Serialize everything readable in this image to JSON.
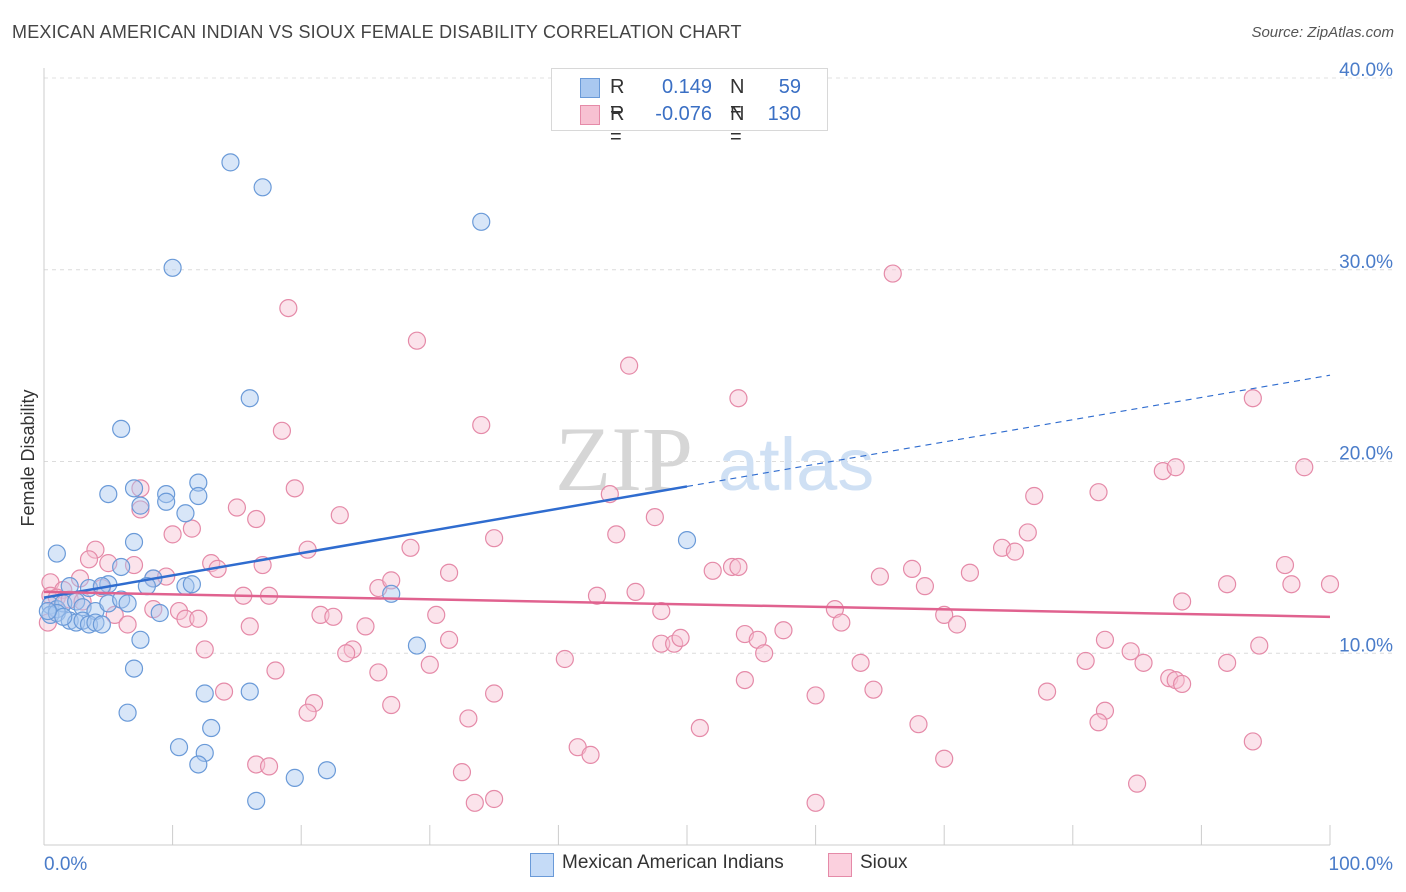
{
  "header": {
    "title": "MEXICAN AMERICAN INDIAN VS SIOUX FEMALE DISABILITY CORRELATION CHART",
    "source": "Source: ZipAtlas.com"
  },
  "watermark": {
    "zip": "ZIP",
    "atlas": "atlas"
  },
  "legend": {
    "rows": [
      {
        "r_label": "R =",
        "r_value": "0.149",
        "n_label": "N =",
        "n_value": "59",
        "color": "#a9c8f0",
        "border": "#6a9ad8"
      },
      {
        "r_label": "R =",
        "r_value": "-0.076",
        "n_label": "N =",
        "n_value": "130",
        "color": "#f7c1d2",
        "border": "#e58aa8"
      }
    ]
  },
  "bottom_legend": [
    {
      "label": "Mexican American Indians",
      "color": "#c5dbf7",
      "border": "#6a9ad8"
    },
    {
      "label": "Sioux",
      "color": "#fbd0de",
      "border": "#e58aa8"
    }
  ],
  "chart_data": {
    "type": "scatter",
    "ylabel": "Female Disability",
    "xlim": [
      0,
      100
    ],
    "ylim": [
      0,
      40
    ],
    "x_tick_labels": {
      "left": "0.0%",
      "right": "100.0%"
    },
    "y_ticks": [
      {
        "value": 10,
        "label": "10.0%"
      },
      {
        "value": 20,
        "label": "20.0%"
      },
      {
        "value": 30,
        "label": "30.0%"
      },
      {
        "value": 40,
        "label": "40.0%"
      }
    ],
    "series": [
      {
        "name": "Mexican American Indians",
        "color": "#6a9ad8",
        "fill": "#a9c8f0",
        "trend": {
          "x0": 0,
          "y0": 12.9,
          "x1": 50,
          "y1": 18.7,
          "dash_to_x": 100,
          "dash_to_y": 24.5,
          "color": "#2f6ccf"
        },
        "points": [
          [
            14.5,
            35.6
          ],
          [
            17,
            34.3
          ],
          [
            34,
            32.5
          ],
          [
            10,
            30.1
          ],
          [
            16,
            23.3
          ],
          [
            6,
            21.7
          ],
          [
            5,
            18.3
          ],
          [
            7,
            18.6
          ],
          [
            9.5,
            18.3
          ],
          [
            12,
            18.9
          ],
          [
            12,
            18.2
          ],
          [
            9.5,
            17.9
          ],
          [
            7.5,
            17.7
          ],
          [
            11,
            17.3
          ],
          [
            7,
            15.8
          ],
          [
            50,
            15.9
          ],
          [
            1,
            15.2
          ],
          [
            6,
            14.5
          ],
          [
            8.5,
            13.9
          ],
          [
            5,
            13.6
          ],
          [
            2,
            13.5
          ],
          [
            3.5,
            13.4
          ],
          [
            4.5,
            13.5
          ],
          [
            8,
            13.5
          ],
          [
            11,
            13.5
          ],
          [
            11.5,
            13.6
          ],
          [
            27,
            13.1
          ],
          [
            0.5,
            12.5
          ],
          [
            1,
            12.3
          ],
          [
            1.5,
            12.6
          ],
          [
            2.5,
            12.7
          ],
          [
            3,
            12.4
          ],
          [
            4,
            12.2
          ],
          [
            5,
            12.6
          ],
          [
            6,
            12.8
          ],
          [
            6.5,
            12.6
          ],
          [
            9,
            12.1
          ],
          [
            0.5,
            12.0
          ],
          [
            1,
            12.1
          ],
          [
            2,
            11.7
          ],
          [
            2.5,
            11.6
          ],
          [
            3,
            11.7
          ],
          [
            3.5,
            11.5
          ],
          [
            4,
            11.6
          ],
          [
            4.5,
            11.5
          ],
          [
            1.5,
            11.9
          ],
          [
            0.3,
            12.2
          ],
          [
            7.5,
            10.7
          ],
          [
            29,
            10.4
          ],
          [
            7,
            9.2
          ],
          [
            12.5,
            7.9
          ],
          [
            16,
            8.0
          ],
          [
            6.5,
            6.9
          ],
          [
            13,
            6.1
          ],
          [
            10.5,
            5.1
          ],
          [
            12.5,
            4.8
          ],
          [
            12,
            4.2
          ],
          [
            22,
            3.9
          ],
          [
            19.5,
            3.5
          ],
          [
            16.5,
            2.3
          ]
        ]
      },
      {
        "name": "Sioux",
        "color": "#e58aa8",
        "fill": "#f7c1d2",
        "trend": {
          "x0": 0,
          "y0": 13.2,
          "x1": 100,
          "y1": 11.9,
          "color": "#e0628f"
        },
        "points": [
          [
            19,
            28.0
          ],
          [
            29,
            26.3
          ],
          [
            45.5,
            25.0
          ],
          [
            66,
            29.8
          ],
          [
            54,
            23.3
          ],
          [
            94,
            23.3
          ],
          [
            18.5,
            21.6
          ],
          [
            34,
            21.9
          ],
          [
            87,
            19.5
          ],
          [
            88,
            19.7
          ],
          [
            98,
            19.7
          ],
          [
            7.5,
            18.6
          ],
          [
            19.5,
            18.6
          ],
          [
            44,
            18.3
          ],
          [
            77,
            18.2
          ],
          [
            82,
            18.4
          ],
          [
            15,
            17.6
          ],
          [
            7.5,
            17.5
          ],
          [
            16.5,
            17.0
          ],
          [
            23,
            17.2
          ],
          [
            47.5,
            17.1
          ],
          [
            11.5,
            16.5
          ],
          [
            10,
            16.2
          ],
          [
            35,
            16.0
          ],
          [
            44.5,
            16.2
          ],
          [
            76.5,
            16.3
          ],
          [
            4,
            15.4
          ],
          [
            20.5,
            15.4
          ],
          [
            28.5,
            15.5
          ],
          [
            74.5,
            15.5
          ],
          [
            75.5,
            15.3
          ],
          [
            3.5,
            14.9
          ],
          [
            5,
            14.7
          ],
          [
            7,
            14.6
          ],
          [
            13,
            14.7
          ],
          [
            13.5,
            14.4
          ],
          [
            17,
            14.6
          ],
          [
            31.5,
            14.2
          ],
          [
            52,
            14.3
          ],
          [
            53.5,
            14.5
          ],
          [
            54,
            14.5
          ],
          [
            65,
            14.0
          ],
          [
            67.5,
            14.4
          ],
          [
            72,
            14.2
          ],
          [
            96.5,
            14.6
          ],
          [
            0.5,
            13.7
          ],
          [
            1.5,
            13.3
          ],
          [
            2.8,
            13.9
          ],
          [
            4.5,
            13.4
          ],
          [
            8.5,
            13.9
          ],
          [
            9.5,
            14.0
          ],
          [
            26,
            13.4
          ],
          [
            27,
            13.8
          ],
          [
            68.5,
            13.5
          ],
          [
            92,
            13.6
          ],
          [
            97,
            13.6
          ],
          [
            100,
            13.6
          ],
          [
            0.5,
            13.0
          ],
          [
            1,
            12.9
          ],
          [
            2,
            12.8
          ],
          [
            3,
            12.7
          ],
          [
            15.5,
            13.0
          ],
          [
            17.5,
            13.0
          ],
          [
            43,
            13.0
          ],
          [
            46,
            13.2
          ],
          [
            88.5,
            12.7
          ],
          [
            5.5,
            12.0
          ],
          [
            8.5,
            12.3
          ],
          [
            10.5,
            12.2
          ],
          [
            11,
            11.8
          ],
          [
            12,
            11.8
          ],
          [
            21.5,
            12.0
          ],
          [
            22.5,
            11.9
          ],
          [
            30.5,
            12.0
          ],
          [
            48,
            12.2
          ],
          [
            61.5,
            12.3
          ],
          [
            62,
            11.6
          ],
          [
            70,
            12.0
          ],
          [
            71,
            11.5
          ],
          [
            0.3,
            11.6
          ],
          [
            6.5,
            11.5
          ],
          [
            16,
            11.4
          ],
          [
            25,
            11.4
          ],
          [
            54.5,
            11.0
          ],
          [
            57.5,
            11.2
          ],
          [
            24,
            10.2
          ],
          [
            31.5,
            10.7
          ],
          [
            48,
            10.5
          ],
          [
            49,
            10.5
          ],
          [
            49.5,
            10.8
          ],
          [
            55.5,
            10.7
          ],
          [
            82.5,
            10.7
          ],
          [
            84.5,
            10.1
          ],
          [
            12.5,
            10.2
          ],
          [
            23.5,
            10.0
          ],
          [
            40.5,
            9.7
          ],
          [
            56,
            10.0
          ],
          [
            63.5,
            9.5
          ],
          [
            85.5,
            9.5
          ],
          [
            92,
            9.5
          ],
          [
            30,
            9.4
          ],
          [
            18,
            9.1
          ],
          [
            26,
            9.0
          ],
          [
            94.5,
            10.4
          ],
          [
            81,
            9.6
          ],
          [
            87.5,
            8.7
          ],
          [
            88,
            8.6
          ],
          [
            88.5,
            8.4
          ],
          [
            54.5,
            8.6
          ],
          [
            14,
            8.0
          ],
          [
            35,
            7.9
          ],
          [
            60,
            7.8
          ],
          [
            64.5,
            8.1
          ],
          [
            78,
            8.0
          ],
          [
            21,
            7.4
          ],
          [
            27,
            7.3
          ],
          [
            20.5,
            6.9
          ],
          [
            82.5,
            7.0
          ],
          [
            33,
            6.6
          ],
          [
            51,
            6.1
          ],
          [
            68,
            6.3
          ],
          [
            82,
            6.4
          ],
          [
            94,
            5.4
          ],
          [
            41.5,
            5.1
          ],
          [
            42.5,
            4.7
          ],
          [
            70,
            4.5
          ],
          [
            16.5,
            4.2
          ],
          [
            17.5,
            4.1
          ],
          [
            32.5,
            3.8
          ],
          [
            85,
            3.2
          ],
          [
            33.5,
            2.2
          ],
          [
            35,
            2.4
          ],
          [
            60,
            2.2
          ]
        ]
      }
    ]
  }
}
